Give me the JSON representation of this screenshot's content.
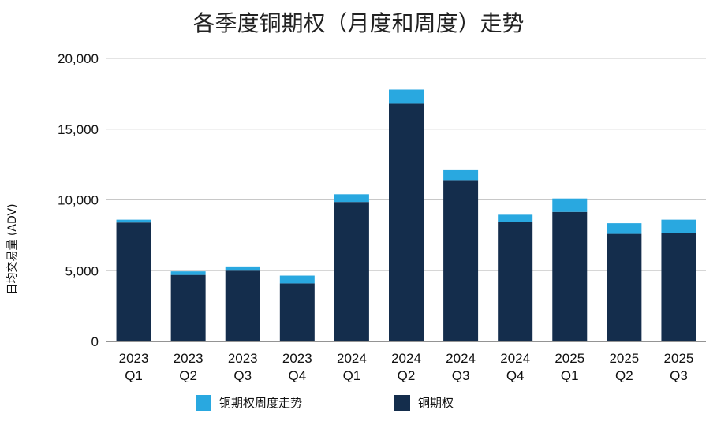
{
  "chart_data": {
    "type": "bar",
    "stacked": true,
    "title": "各季度铜期权（月度和周度）走势",
    "ylabel": "日均交易量 (ADV)",
    "xlabel": "",
    "ylim": [
      0,
      20000
    ],
    "yticks": [
      "0",
      "5,000",
      "10,000",
      "15,000",
      "20,000"
    ],
    "ytick_values": [
      0,
      5000,
      10000,
      15000,
      20000
    ],
    "grid": true,
    "legend_position": "bottom",
    "categories": [
      [
        "2023",
        "Q1"
      ],
      [
        "2023",
        "Q2"
      ],
      [
        "2023",
        "Q3"
      ],
      [
        "2023",
        "Q4"
      ],
      [
        "2024",
        "Q1"
      ],
      [
        "2024",
        "Q2"
      ],
      [
        "2024",
        "Q3"
      ],
      [
        "2024",
        "Q4"
      ],
      [
        "2025",
        "Q1"
      ],
      [
        "2025",
        "Q2"
      ],
      [
        "2025",
        "Q3"
      ]
    ],
    "series": [
      {
        "name": "铜期权",
        "color": "#142d4c",
        "values": [
          8400,
          4700,
          5000,
          4100,
          9850,
          16800,
          11400,
          8450,
          9150,
          7600,
          7650
        ]
      },
      {
        "name": "铜期权周度走势",
        "color": "#29a8e0",
        "values": [
          200,
          250,
          300,
          550,
          550,
          1000,
          750,
          500,
          950,
          750,
          950
        ]
      }
    ]
  }
}
